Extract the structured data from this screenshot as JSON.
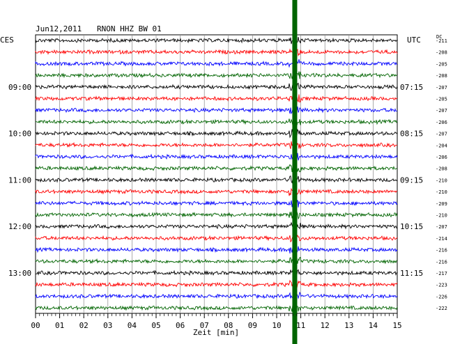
{
  "header": {
    "date": "Jun12,2011",
    "station": "RNON HHZ BW 01",
    "left_tz": "CES",
    "right_tz": "UTC",
    "dc_label": "DC"
  },
  "chart_data": {
    "type": "line",
    "title": "Jun12,2011   RNON HHZ BW 01",
    "xlabel": "Zeit [min]",
    "xlim": [
      0,
      15
    ],
    "x_ticks": [
      "00",
      "01",
      "02",
      "03",
      "04",
      "05",
      "06",
      "07",
      "08",
      "09",
      "10",
      "11",
      "12",
      "13",
      "14",
      "15"
    ],
    "left_time_labels": [
      {
        "row": 4,
        "label": "09:00"
      },
      {
        "row": 8,
        "label": "10:00"
      },
      {
        "row": 12,
        "label": "11:00"
      },
      {
        "row": 16,
        "label": "12:00"
      },
      {
        "row": 20,
        "label": "13:00"
      }
    ],
    "right_time_labels": [
      {
        "row": 4,
        "label": "07:15"
      },
      {
        "row": 8,
        "label": "08:15"
      },
      {
        "row": 12,
        "label": "09:15"
      },
      {
        "row": 16,
        "label": "10:15"
      },
      {
        "row": 20,
        "label": "11:15"
      }
    ],
    "dc_offsets": [
      "-211",
      "-208",
      "-205",
      "-208",
      "-207",
      "-205",
      "-207",
      "-206",
      "-207",
      "-204",
      "-206",
      "-208",
      "-210",
      "-210",
      "-209",
      "-210",
      "-207",
      "-214",
      "-216",
      "-216",
      "-217",
      "-223",
      "-226",
      "-222"
    ],
    "trace_colors": [
      "#000000",
      "#ff0000",
      "#0000ff",
      "#006400"
    ],
    "event": {
      "minute": 10.75,
      "color": "#006400"
    },
    "rows": 24
  }
}
